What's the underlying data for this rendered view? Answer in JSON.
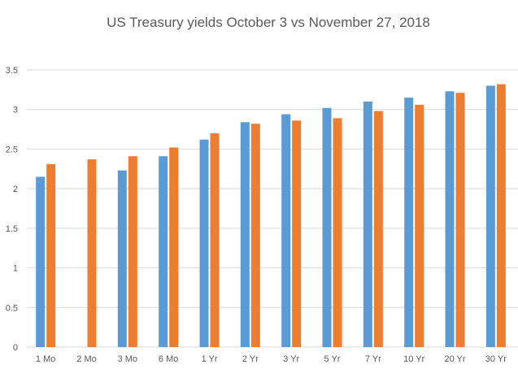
{
  "chart_data": {
    "type": "bar",
    "title": "US Treasury yields October 3 vs November  27, 2018",
    "xlabel": "",
    "ylabel": "",
    "categories": [
      "1 Mo",
      "2 Mo",
      "3 Mo",
      "6 Mo",
      "1 Yr",
      "2 Yr",
      "3 Yr",
      "5 Yr",
      "7 Yr",
      "10 Yr",
      "20 Yr",
      "30 Yr"
    ],
    "series": [
      {
        "values": [
          2.15,
          null,
          2.23,
          2.41,
          2.62,
          2.84,
          2.94,
          3.02,
          3.1,
          3.15,
          3.23,
          3.3
        ],
        "color": "#5B9BD5"
      },
      {
        "values": [
          2.31,
          2.37,
          2.41,
          2.52,
          2.7,
          2.82,
          2.86,
          2.89,
          2.98,
          3.06,
          3.21,
          3.32
        ],
        "color": "#ED7D31"
      }
    ],
    "ylim": [
      0,
      3.5
    ],
    "yticks": [
      "0",
      "0.5",
      "1",
      "1.5",
      "2",
      "2.5",
      "3",
      "3.5"
    ],
    "grid": true,
    "legend": "none"
  }
}
